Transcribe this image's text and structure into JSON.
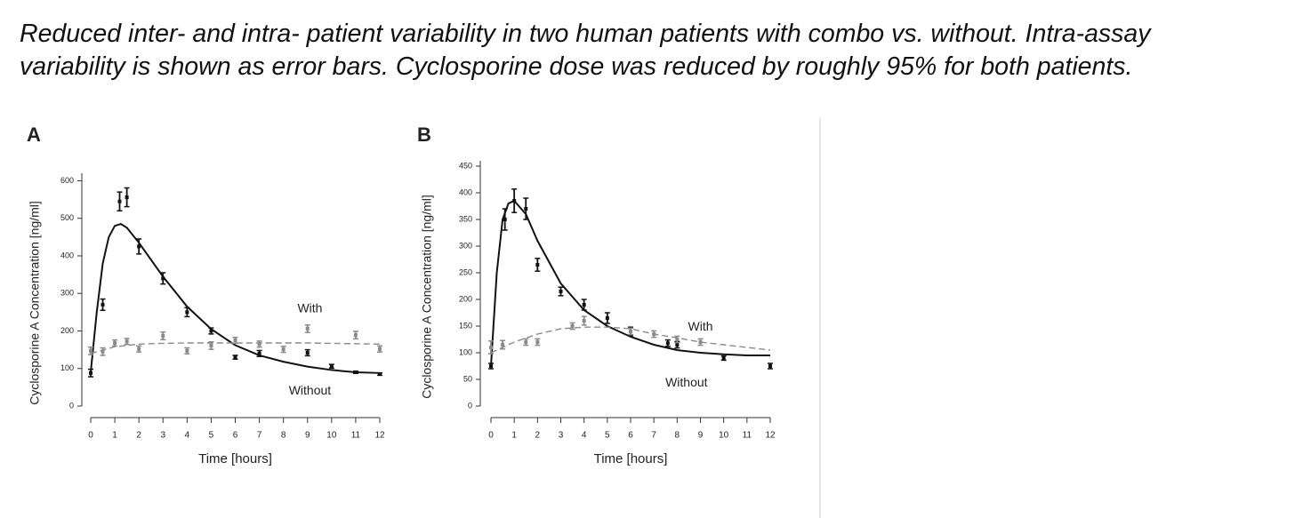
{
  "caption": "Reduced inter- and intra- patient variability in two human patients with combo vs. without. Intra-assay variability is shown as error bars. Cyclosporine dose was reduced by roughly 95% for both patients.",
  "chart_data": [
    {
      "type": "line",
      "panel": "A",
      "xlabel": "Time [hours]",
      "ylabel": "Cyclosporine A Concentration [ng/ml]",
      "xlim": [
        0,
        12
      ],
      "xticks": [
        0,
        1,
        2,
        3,
        4,
        5,
        6,
        7,
        8,
        9,
        10,
        11,
        12
      ],
      "ylim": [
        0,
        620
      ],
      "yticks": [
        0,
        100,
        200,
        300,
        400,
        500,
        600
      ],
      "series": [
        {
          "name": "Without",
          "color": "#111111",
          "dash": false,
          "x": [
            0,
            0.5,
            1.2,
            1.5,
            2,
            3,
            4,
            5,
            6,
            7,
            9,
            10,
            11,
            12
          ],
          "values": [
            88,
            270,
            545,
            556,
            425,
            340,
            250,
            200,
            130,
            140,
            142,
            106,
            90,
            85
          ],
          "errors": [
            10,
            15,
            25,
            25,
            20,
            15,
            12,
            8,
            5,
            8,
            8,
            5,
            3,
            3
          ],
          "fit_x": [
            0,
            0.25,
            0.5,
            0.75,
            1,
            1.25,
            1.5,
            2,
            3,
            4,
            5,
            6,
            7,
            8,
            9,
            10,
            11,
            12
          ],
          "fit_values": [
            90,
            250,
            380,
            450,
            480,
            485,
            475,
            435,
            345,
            265,
            205,
            162,
            135,
            118,
            105,
            96,
            90,
            88
          ]
        },
        {
          "name": "With",
          "color": "#8a8a8a",
          "dash": true,
          "x": [
            0,
            0.5,
            1,
            1.5,
            2,
            3,
            4,
            5,
            6,
            7,
            8,
            9,
            11,
            12
          ],
          "values": [
            147,
            145,
            168,
            172,
            152,
            187,
            147,
            161,
            175,
            165,
            151,
            206,
            189,
            152
          ],
          "errors": [
            10,
            10,
            8,
            8,
            8,
            10,
            8,
            10,
            8,
            8,
            8,
            10,
            10,
            8
          ],
          "fit_x": [
            0,
            1,
            2,
            3,
            4,
            5,
            6,
            7,
            8,
            9,
            10,
            11,
            12
          ],
          "fit_values": [
            140,
            158,
            165,
            167,
            168,
            168,
            168,
            168,
            168,
            168,
            167,
            166,
            165
          ]
        }
      ]
    },
    {
      "type": "line",
      "panel": "B",
      "xlabel": "Time [hours]",
      "ylabel": "Cyclosporine A Concentration [ng/ml]",
      "xlim": [
        0,
        12
      ],
      "xticks": [
        0,
        1,
        2,
        3,
        4,
        5,
        6,
        7,
        8,
        9,
        10,
        11,
        12
      ],
      "ylim": [
        0,
        460
      ],
      "yticks": [
        0,
        50,
        100,
        150,
        200,
        250,
        300,
        350,
        400,
        450
      ],
      "series": [
        {
          "name": "Without",
          "color": "#111111",
          "dash": false,
          "x": [
            0,
            0.6,
            1,
            1.5,
            2,
            3,
            4,
            5,
            6,
            7.6,
            8,
            10,
            12
          ],
          "values": [
            75,
            350,
            385,
            370,
            265,
            215,
            190,
            165,
            140,
            118,
            115,
            90,
            75
          ],
          "errors": [
            5,
            20,
            22,
            20,
            12,
            8,
            10,
            10,
            8,
            6,
            6,
            4,
            5
          ],
          "fit_x": [
            0,
            0.25,
            0.5,
            0.75,
            1,
            1.5,
            2,
            3,
            4,
            5,
            6,
            7,
            8,
            9,
            10,
            11,
            12
          ],
          "fit_values": [
            75,
            250,
            350,
            380,
            385,
            360,
            310,
            230,
            180,
            150,
            130,
            115,
            105,
            100,
            97,
            95,
            95
          ]
        },
        {
          "name": "With",
          "color": "#8a8a8a",
          "dash": true,
          "x": [
            0,
            0.5,
            1.5,
            2,
            3.5,
            4,
            6,
            7,
            8,
            9
          ],
          "values": [
            110,
            115,
            120,
            120,
            150,
            160,
            140,
            135,
            125,
            120
          ],
          "errors": [
            12,
            8,
            6,
            6,
            6,
            8,
            6,
            6,
            6,
            6
          ],
          "fit_x": [
            0,
            1,
            2,
            3,
            4,
            5,
            6,
            7,
            8,
            9,
            10,
            11,
            12
          ],
          "fit_values": [
            100,
            120,
            135,
            145,
            148,
            148,
            145,
            135,
            128,
            120,
            115,
            110,
            105
          ]
        }
      ]
    }
  ]
}
